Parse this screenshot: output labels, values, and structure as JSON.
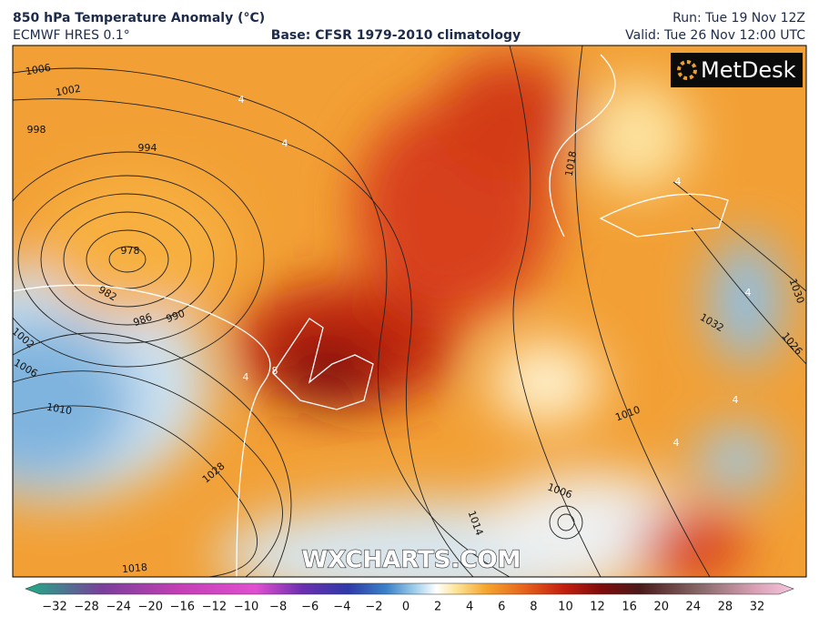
{
  "header": {
    "title": "850 hPa Temperature Anomaly (°C)",
    "model": "ECMWF HRES 0.1°",
    "base": "Base: CFSR 1979-2010 climatology",
    "run": "Run: Tue 19 Nov 12Z",
    "valid": "Valid: Tue 26 Nov 12:00 UTC"
  },
  "logo": "MetDesk",
  "watermark": "WXCHARTS.COM",
  "isobar_labels": [
    "1006",
    "1002",
    "998",
    "994",
    "978",
    "982",
    "986",
    "990",
    "1002",
    "1006",
    "1010",
    "1018",
    "1014",
    "1006",
    "1010",
    "1032",
    "1026",
    "1030",
    "1018",
    "1028"
  ],
  "anomaly_labels": [
    "4",
    "4",
    "8",
    "4",
    "4",
    "4",
    "4",
    "4"
  ],
  "colorbar_labels": [
    "−32",
    "−28",
    "−24",
    "−20",
    "−16",
    "−12",
    "−10",
    "−8",
    "−6",
    "−4",
    "−2",
    "0",
    "2",
    "4",
    "6",
    "8",
    "10",
    "12",
    "16",
    "20",
    "24",
    "28",
    "32"
  ]
}
